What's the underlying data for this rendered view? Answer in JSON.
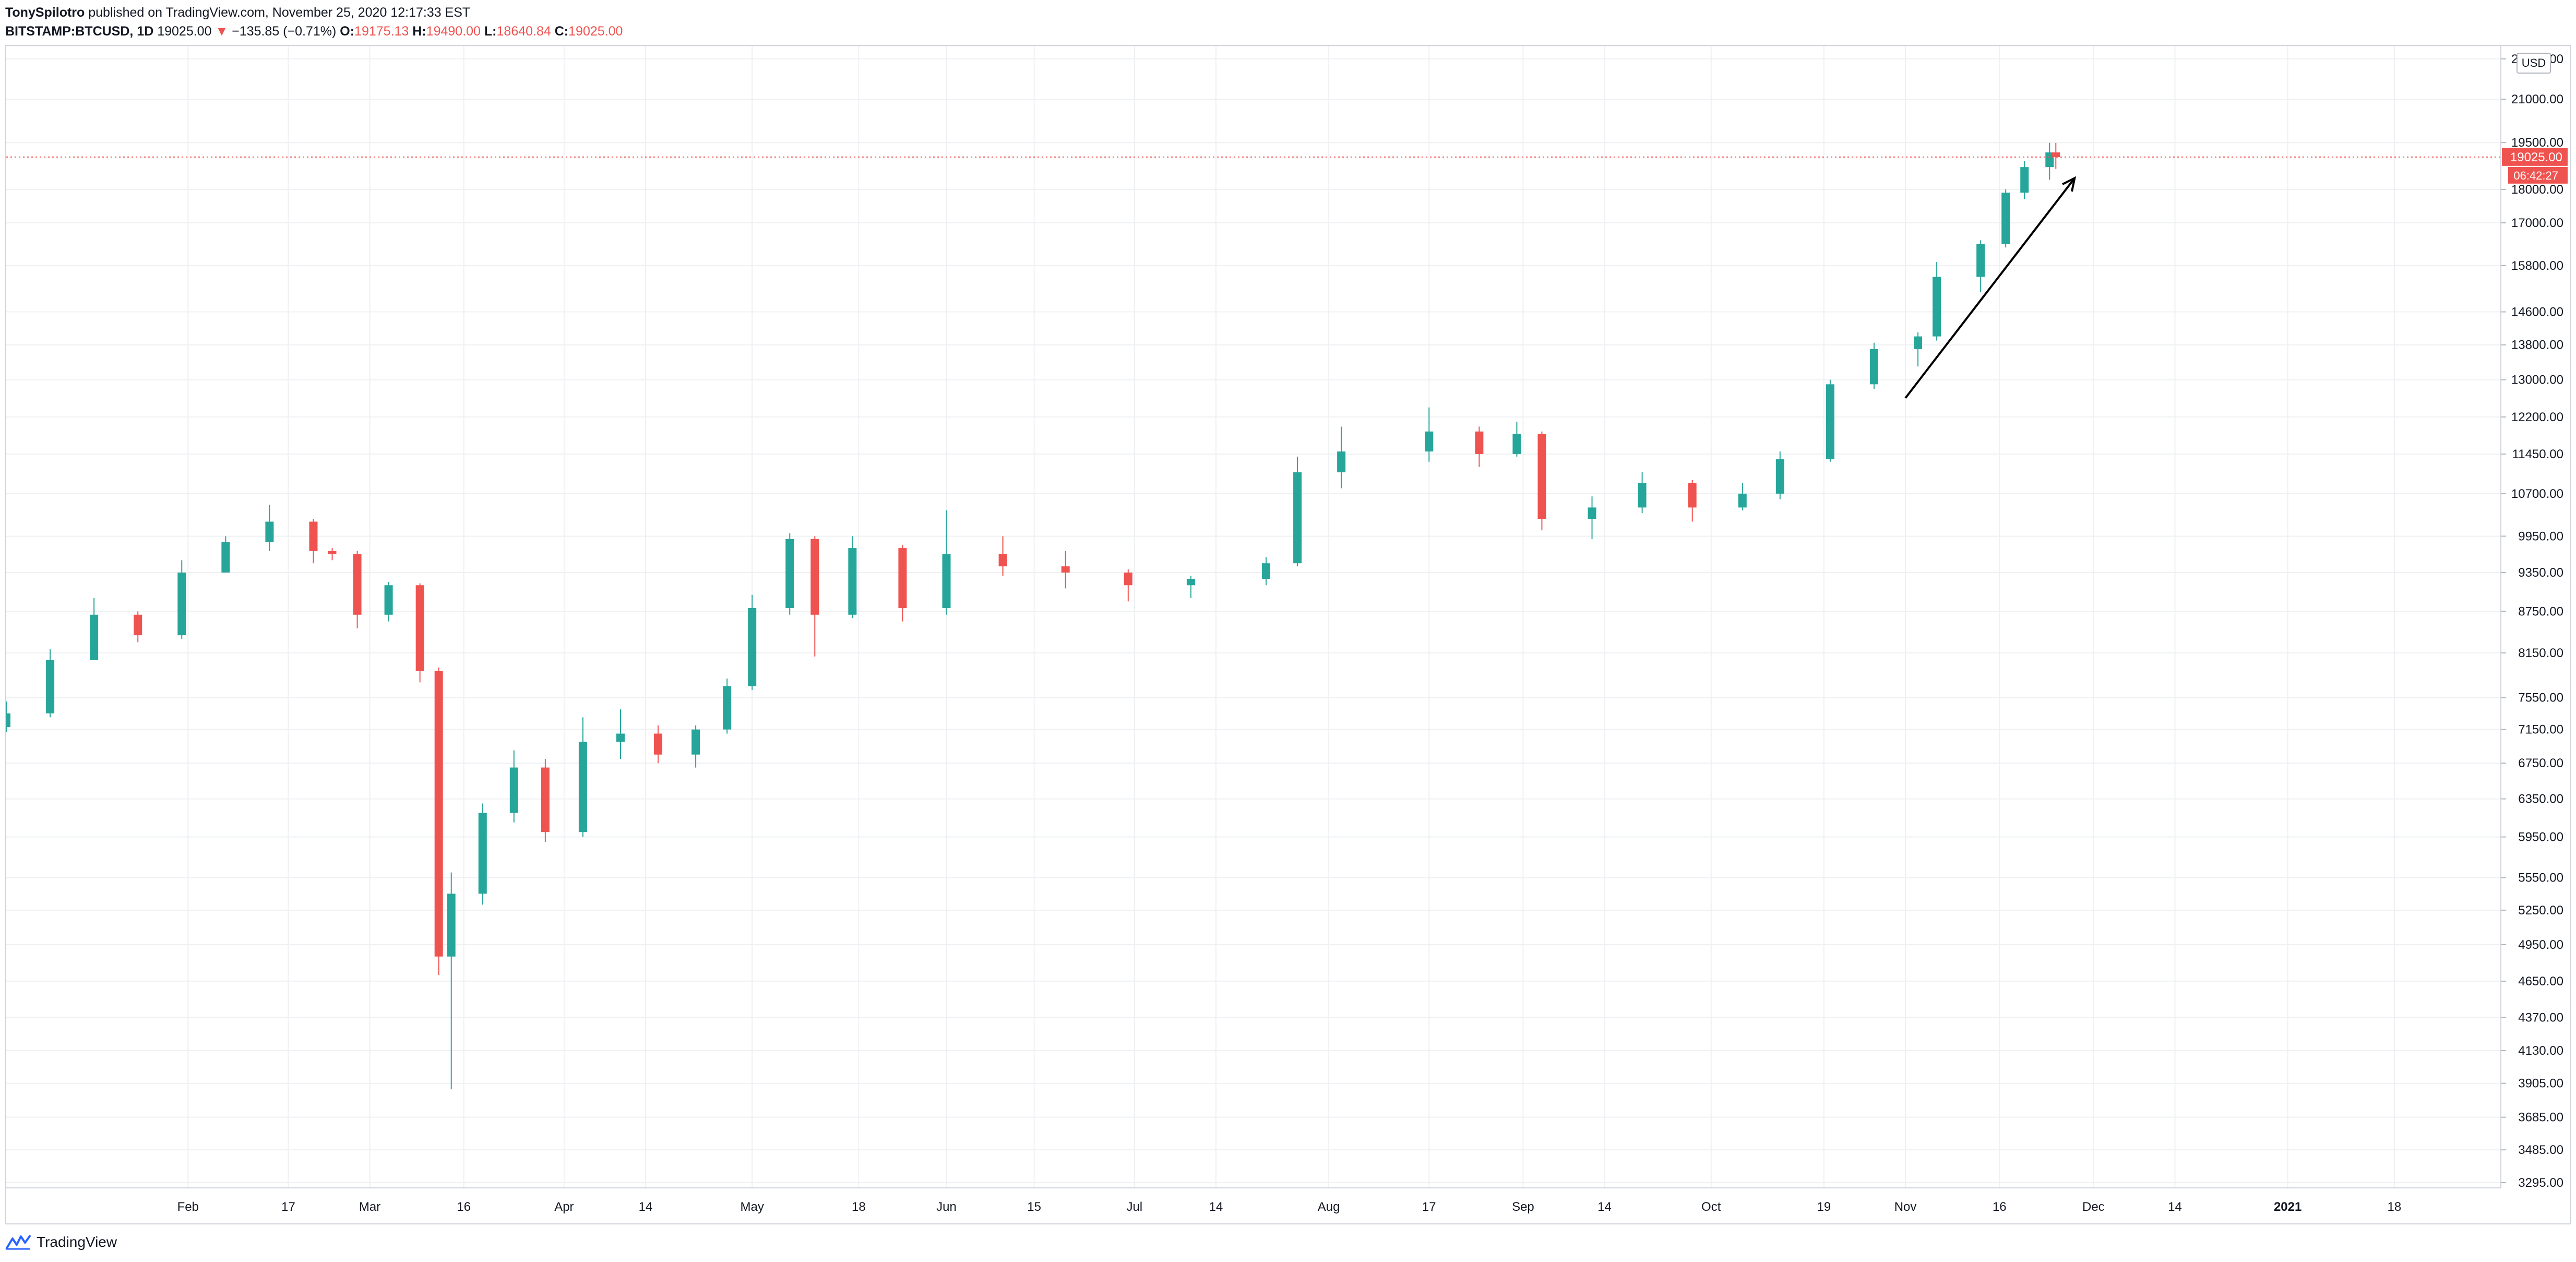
{
  "header": {
    "author": "TonySpilotro",
    "published_text": "published on TradingView.com, November 25, 2020 12:17:33 EST",
    "symbol": "BITSTAMP:BTCUSD, 1D",
    "last": "19025.00",
    "change_arrow": "▼",
    "change": "−135.85 (−0.71%)",
    "o_label": "O:",
    "o_value": "19175.13",
    "h_label": "H:",
    "h_value": "19490.00",
    "l_label": "L:",
    "l_value": "18640.84",
    "c_label": "C:",
    "c_value": "19025.00"
  },
  "footer": {
    "logo_text": "TradingView",
    "logo_icon": "tradingview-logo-icon"
  },
  "currency_badge": "USD",
  "colors": {
    "up": "#26a69a",
    "down": "#ef5350",
    "grid": "#eef0f3",
    "axis_text": "#131722",
    "price_line": "#ef5350",
    "annotation": "#000000"
  },
  "chart_data": {
    "type": "candlestick",
    "title": "",
    "xlabel": "",
    "ylabel": "",
    "scale": "log",
    "grid": true,
    "ylim": [
      3295,
      22000
    ],
    "x_range": [
      "2020-01-03",
      "2021-02-04"
    ],
    "y_ticks": [
      "3295.00",
      "3485.00",
      "3685.00",
      "3905.00",
      "4130.00",
      "4370.00",
      "4650.00",
      "4950.00",
      "5250.00",
      "5550.00",
      "5950.00",
      "6350.00",
      "6750.00",
      "7150.00",
      "7550.00",
      "8150.00",
      "8750.00",
      "9350.00",
      "9950.00",
      "10700.00",
      "11450.00",
      "12200.00",
      "13000.00",
      "13800.00",
      "14600.00",
      "15800.00",
      "17000.00",
      "18000.00",
      "19500.00",
      "21000.00",
      "22500.00"
    ],
    "x_ticks": [
      {
        "label": "Feb",
        "date": "2020-02-01"
      },
      {
        "label": "17",
        "date": "2020-02-17"
      },
      {
        "label": "Mar",
        "date": "2020-03-01"
      },
      {
        "label": "16",
        "date": "2020-03-16"
      },
      {
        "label": "Apr",
        "date": "2020-04-01"
      },
      {
        "label": "14",
        "date": "2020-04-14"
      },
      {
        "label": "May",
        "date": "2020-05-01"
      },
      {
        "label": "18",
        "date": "2020-05-18"
      },
      {
        "label": "Jun",
        "date": "2020-06-01"
      },
      {
        "label": "15",
        "date": "2020-06-15"
      },
      {
        "label": "Jul",
        "date": "2020-07-01"
      },
      {
        "label": "14",
        "date": "2020-07-14"
      },
      {
        "label": "Aug",
        "date": "2020-08-01"
      },
      {
        "label": "17",
        "date": "2020-08-17"
      },
      {
        "label": "Sep",
        "date": "2020-09-01"
      },
      {
        "label": "14",
        "date": "2020-09-14"
      },
      {
        "label": "Oct",
        "date": "2020-10-01"
      },
      {
        "label": "19",
        "date": "2020-10-19"
      },
      {
        "label": "Nov",
        "date": "2020-11-01"
      },
      {
        "label": "16",
        "date": "2020-11-16"
      },
      {
        "label": "Dec",
        "date": "2020-12-01"
      },
      {
        "label": "14",
        "date": "2020-12-14"
      },
      {
        "label": "2021",
        "date": "2021-01-01"
      },
      {
        "label": "18",
        "date": "2021-01-18"
      }
    ],
    "last_price": {
      "value": 19025.0,
      "label": "19025.00",
      "countdown": "06:42:27"
    },
    "annotation_arrow": {
      "from": {
        "date": "2020-11-01",
        "price": 12600
      },
      "to": {
        "date": "2020-11-28",
        "price": 18350
      }
    },
    "ohlc": [
      [
        "2020-01-03",
        7180,
        7500,
        7120,
        7350
      ],
      [
        "2020-01-10",
        7350,
        8200,
        7300,
        8050
      ],
      [
        "2020-01-17",
        8050,
        8950,
        8050,
        8700
      ],
      [
        "2020-01-24",
        8700,
        8750,
        8300,
        8400
      ],
      [
        "2020-01-31",
        8400,
        9550,
        8350,
        9350
      ],
      [
        "2020-02-07",
        9350,
        9950,
        9350,
        9850
      ],
      [
        "2020-02-14",
        9850,
        10500,
        9700,
        10200
      ],
      [
        "2020-02-21",
        10200,
        10250,
        9500,
        9700
      ],
      [
        "2020-02-24",
        9700,
        9750,
        9550,
        9650
      ],
      [
        "2020-02-28",
        9650,
        9700,
        8500,
        8700
      ],
      [
        "2020-03-04",
        8700,
        9200,
        8600,
        9150
      ],
      [
        "2020-03-09",
        9150,
        9180,
        7750,
        7900
      ],
      [
        "2020-03-12",
        7900,
        7950,
        4700,
        4850
      ],
      [
        "2020-03-14",
        4850,
        5600,
        3865,
        5400
      ],
      [
        "2020-03-19",
        5400,
        6300,
        5300,
        6200
      ],
      [
        "2020-03-24",
        6200,
        6900,
        6100,
        6700
      ],
      [
        "2020-03-29",
        6700,
        6800,
        5900,
        6000
      ],
      [
        "2020-04-04",
        6000,
        7300,
        5950,
        7000
      ],
      [
        "2020-04-10",
        7000,
        7400,
        6800,
        7100
      ],
      [
        "2020-04-16",
        7100,
        7200,
        6750,
        6850
      ],
      [
        "2020-04-22",
        6850,
        7200,
        6700,
        7150
      ],
      [
        "2020-04-27",
        7150,
        7800,
        7100,
        7700
      ],
      [
        "2020-05-01",
        7700,
        9000,
        7650,
        8800
      ],
      [
        "2020-05-07",
        8800,
        10000,
        8700,
        9900
      ],
      [
        "2020-05-11",
        9900,
        9950,
        8100,
        8700
      ],
      [
        "2020-05-17",
        8700,
        9950,
        8650,
        9750
      ],
      [
        "2020-05-25",
        9750,
        9800,
        8600,
        8800
      ],
      [
        "2020-06-01",
        8800,
        10400,
        8700,
        9650
      ],
      [
        "2020-06-10",
        9650,
        9950,
        9300,
        9450
      ],
      [
        "2020-06-20",
        9450,
        9700,
        9100,
        9350
      ],
      [
        "2020-06-30",
        9350,
        9400,
        8900,
        9150
      ],
      [
        "2020-07-10",
        9150,
        9300,
        8950,
        9250
      ],
      [
        "2020-07-22",
        9250,
        9600,
        9150,
        9500
      ],
      [
        "2020-07-27",
        9500,
        11400,
        9450,
        11100
      ],
      [
        "2020-08-03",
        11100,
        12000,
        10800,
        11500
      ],
      [
        "2020-08-17",
        11500,
        12400,
        11300,
        11900
      ],
      [
        "2020-08-25",
        11900,
        12000,
        11200,
        11450
      ],
      [
        "2020-08-31",
        11450,
        12100,
        11400,
        11850
      ],
      [
        "2020-09-04",
        11850,
        11900,
        10050,
        10250
      ],
      [
        "2020-09-12",
        10250,
        10650,
        9900,
        10450
      ],
      [
        "2020-09-20",
        10450,
        11100,
        10350,
        10900
      ],
      [
        "2020-09-28",
        10900,
        10950,
        10200,
        10450
      ],
      [
        "2020-10-06",
        10450,
        10900,
        10400,
        10700
      ],
      [
        "2020-10-12",
        10700,
        11500,
        10600,
        11350
      ],
      [
        "2020-10-20",
        11350,
        13000,
        11300,
        12900
      ],
      [
        "2020-10-27",
        12900,
        13850,
        12800,
        13700
      ],
      [
        "2020-11-03",
        13700,
        14100,
        13300,
        14000
      ],
      [
        "2020-11-06",
        14000,
        15900,
        13900,
        15500
      ],
      [
        "2020-11-13",
        15500,
        16500,
        15100,
        16400
      ],
      [
        "2020-11-17",
        16400,
        18000,
        16300,
        17900
      ],
      [
        "2020-11-20",
        17900,
        18900,
        17700,
        18700
      ],
      [
        "2020-11-24",
        18700,
        19490,
        18300,
        19175
      ],
      [
        "2020-11-25",
        19175,
        19490,
        18640.84,
        19025
      ]
    ]
  }
}
